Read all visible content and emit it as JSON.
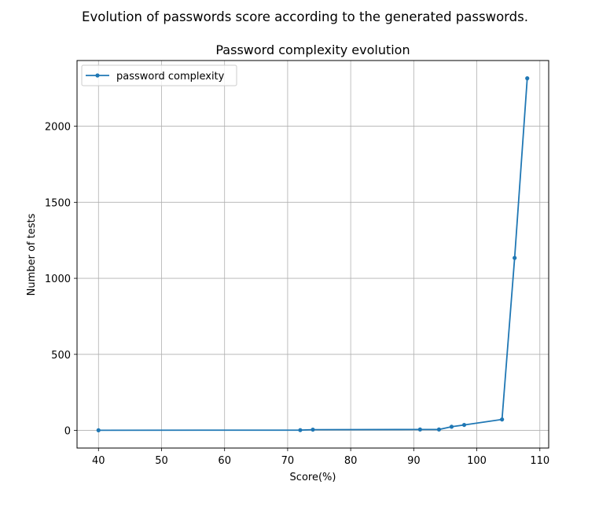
{
  "suptitle": "Evolution of passwords score according to the generated passwords.",
  "chart_data": {
    "type": "line",
    "title": "Password complexity evolution",
    "xlabel": "Score(%)",
    "ylabel": "Number of tests",
    "xlim": [
      36.6,
      111.4
    ],
    "ylim": [
      -116,
      2432
    ],
    "xticks": [
      40,
      50,
      60,
      70,
      80,
      90,
      100,
      110
    ],
    "yticks": [
      0,
      500,
      1000,
      1500,
      2000
    ],
    "grid": true,
    "legend_position": "upper left",
    "series": [
      {
        "name": "password complexity",
        "color": "#1f77b4",
        "marker": "dot",
        "x": [
          40,
          72,
          74,
          91,
          94,
          96,
          98,
          104,
          106,
          108
        ],
        "y": [
          1,
          2,
          5,
          6,
          6,
          24,
          36,
          72,
          1134,
          2315
        ]
      }
    ]
  }
}
